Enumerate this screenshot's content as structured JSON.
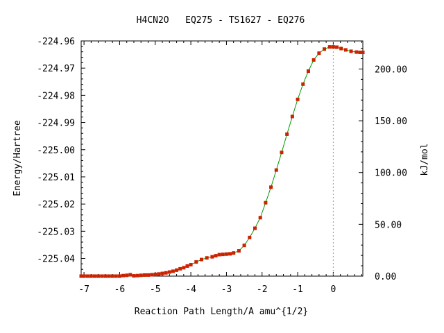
{
  "chart_data": {
    "type": "line",
    "title": "H4CN2O   EQ275 - TS1627 - EQ276",
    "xlabel": "Reaction Path Length/A amu^{1/2}",
    "ylabel": "Energy/Hartree",
    "y2label": "kJ/mol",
    "xlim": [
      -7.08,
      0.83
    ],
    "ylim": [
      -225.0465,
      -224.96
    ],
    "y2lim": [
      0,
      227.1
    ],
    "x_ticks": [
      -7,
      -6,
      -5,
      -4,
      -3,
      -2,
      -1,
      0
    ],
    "x_tick_labels": [
      "-7",
      "-6",
      "-5",
      "-4",
      "-3",
      "-2",
      "-1",
      "0"
    ],
    "y_ticks": [
      -224.96,
      -224.97,
      -224.98,
      -224.99,
      -225.0,
      -225.01,
      -225.02,
      -225.03,
      -225.04
    ],
    "y_tick_labels": [
      "-224.96",
      "-224.97",
      "-224.98",
      "-224.99",
      "-225.00",
      "-225.01",
      "-225.02",
      "-225.03",
      "-225.04"
    ],
    "y2_ticks": [
      0,
      50,
      100,
      150,
      200
    ],
    "y2_tick_labels": [
      "0.00",
      "50.00",
      "100.00",
      "150.00",
      "200.00"
    ],
    "ts_x": 0,
    "grid": false,
    "line_color": "#009900",
    "marker_color": "#cc2200",
    "vline_color": "#999999",
    "series": [
      {
        "x": [
          -7.08,
          -7.0,
          -6.9,
          -6.8,
          -6.7,
          -6.6,
          -6.5,
          -6.4,
          -6.3,
          -6.2,
          -6.1,
          -6.0,
          -5.9,
          -5.8,
          -5.7,
          -5.6,
          -5.5,
          -5.4,
          -5.3,
          -5.2,
          -5.1,
          -5.0,
          -4.9,
          -4.8,
          -4.7,
          -4.6,
          -4.5,
          -4.4,
          -4.3,
          -4.2,
          -4.1,
          -4.0,
          -3.85,
          -3.7,
          -3.55,
          -3.4,
          -3.3,
          -3.2,
          -3.1,
          -3.0,
          -2.9,
          -2.8,
          -2.65,
          -2.5,
          -2.35,
          -2.2,
          -2.05,
          -1.9,
          -1.75,
          -1.6,
          -1.45,
          -1.3,
          -1.15,
          -1.0,
          -0.85,
          -0.7,
          -0.55,
          -0.4,
          -0.25,
          -0.1,
          0.0,
          0.1,
          0.22,
          0.35,
          0.5,
          0.65,
          0.75,
          0.83
        ],
        "y": [
          -225.0465,
          -225.0465,
          -225.0465,
          -225.0465,
          -225.0465,
          -225.0465,
          -225.0465,
          -225.0465,
          -225.0465,
          -225.0465,
          -225.0465,
          -225.0465,
          -225.0463,
          -225.0462,
          -225.046,
          -225.0464,
          -225.0463,
          -225.0462,
          -225.0461,
          -225.0461,
          -225.046,
          -225.0459,
          -225.0457,
          -225.0455,
          -225.0453,
          -225.045,
          -225.0447,
          -225.0443,
          -225.0438,
          -225.0434,
          -225.0428,
          -225.0423,
          -225.0413,
          -225.0404,
          -225.0398,
          -225.0394,
          -225.039,
          -225.0386,
          -225.0385,
          -225.0384,
          -225.0383,
          -225.038,
          -225.0372,
          -225.0352,
          -225.0323,
          -225.0289,
          -225.025,
          -225.0195,
          -225.0138,
          -225.0075,
          -225.001,
          -224.9943,
          -224.9878,
          -224.9815,
          -224.9759,
          -224.9711,
          -224.967,
          -224.9645,
          -224.963,
          -224.9622,
          -224.9622,
          -224.9623,
          -224.9628,
          -224.9633,
          -224.9638,
          -224.9641,
          -224.9642,
          -224.9642
        ]
      }
    ]
  }
}
